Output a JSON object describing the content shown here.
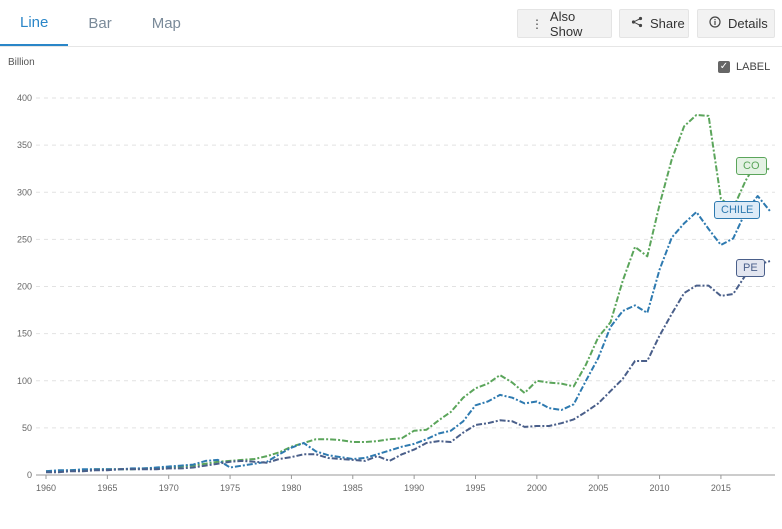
{
  "tabs": [
    {
      "label": "Line"
    },
    {
      "label": "Bar"
    },
    {
      "label": "Map"
    }
  ],
  "toolbar": {
    "also_show": "Also Show",
    "share": "Share",
    "details": "Details"
  },
  "label_toggle": {
    "text": "LABEL",
    "checked": true
  },
  "chart_data": {
    "type": "line",
    "ylabel": "Billion",
    "xlim": [
      1960,
      2019
    ],
    "ylim": [
      0,
      400
    ],
    "yticks": [
      0,
      50,
      100,
      150,
      200,
      250,
      300,
      350,
      400
    ],
    "xticks": [
      1960,
      1965,
      1970,
      1975,
      1980,
      1985,
      1990,
      1995,
      2000,
      2005,
      2010,
      2015
    ],
    "grid": true,
    "x": [
      1960,
      1961,
      1962,
      1963,
      1964,
      1965,
      1966,
      1967,
      1968,
      1969,
      1970,
      1971,
      1972,
      1973,
      1974,
      1975,
      1976,
      1977,
      1978,
      1979,
      1980,
      1981,
      1982,
      1983,
      1984,
      1985,
      1986,
      1987,
      1988,
      1989,
      1990,
      1991,
      1992,
      1993,
      1994,
      1995,
      1996,
      1997,
      1998,
      1999,
      2000,
      2001,
      2002,
      2003,
      2004,
      2005,
      2006,
      2007,
      2008,
      2009,
      2010,
      2011,
      2012,
      2013,
      2014,
      2015,
      2016,
      2017,
      2018,
      2019
    ],
    "series": [
      {
        "name": "CO",
        "color": "#5ba55b",
        "values": [
          4,
          4,
          5,
          5,
          6,
          6,
          6,
          6,
          7,
          7,
          8,
          9,
          10,
          12,
          14,
          15,
          16,
          17,
          20,
          24,
          30,
          34,
          38,
          38,
          37,
          35,
          35,
          36,
          38,
          39,
          47,
          48,
          58,
          67,
          82,
          92,
          97,
          106,
          98,
          87,
          100,
          98,
          97,
          94,
          117,
          146,
          162,
          206,
          242,
          232,
          287,
          335,
          370,
          382,
          381,
          293,
          283,
          312,
          334,
          323
        ]
      },
      {
        "name": "CHILE",
        "color": "#2e7ab0",
        "values": [
          4,
          5,
          5,
          6,
          6,
          6,
          6,
          7,
          7,
          8,
          9,
          10,
          11,
          15,
          16,
          8,
          10,
          12,
          14,
          22,
          29,
          34,
          25,
          21,
          19,
          17,
          18,
          22,
          26,
          30,
          33,
          38,
          44,
          47,
          57,
          74,
          78,
          85,
          82,
          76,
          78,
          71,
          69,
          75,
          100,
          124,
          157,
          174,
          180,
          172,
          218,
          252,
          267,
          279,
          261,
          244,
          251,
          279,
          296,
          280
        ]
      },
      {
        "name": "PE",
        "color": "#4a5f8a",
        "values": [
          3,
          3,
          4,
          4,
          5,
          5,
          6,
          6,
          6,
          6,
          7,
          7,
          8,
          10,
          12,
          14,
          15,
          14,
          13,
          17,
          19,
          22,
          22,
          18,
          17,
          16,
          15,
          20,
          15,
          22,
          27,
          34,
          36,
          35,
          45,
          53,
          55,
          58,
          57,
          51,
          52,
          52,
          55,
          59,
          67,
          76,
          89,
          102,
          121,
          121,
          148,
          171,
          193,
          201,
          201,
          190,
          192,
          212,
          223,
          227
        ]
      }
    ]
  }
}
